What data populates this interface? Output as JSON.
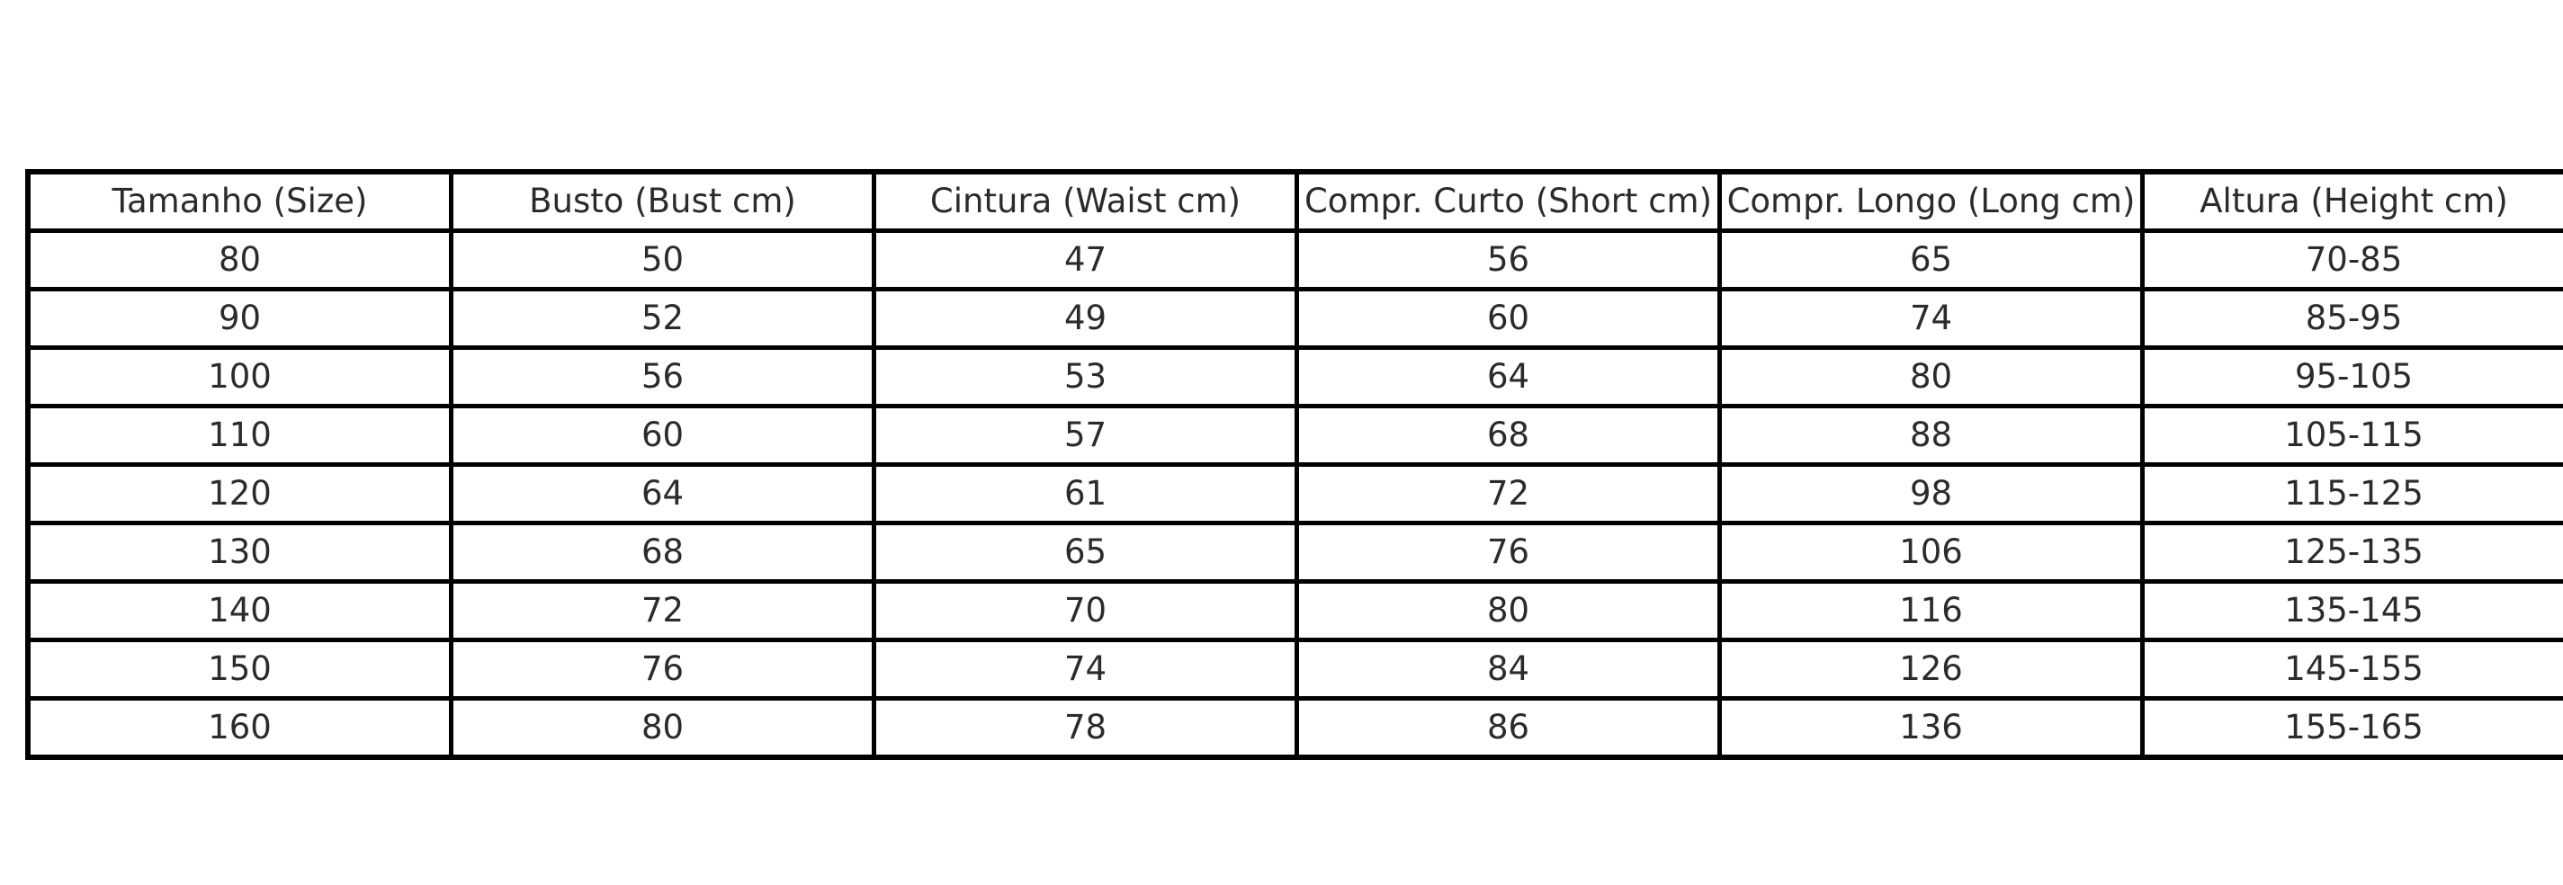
{
  "chart_data": {
    "type": "table",
    "title": "",
    "columns": [
      "Tamanho (Size)",
      "Busto (Bust cm)",
      "Cintura (Waist cm)",
      "Compr. Curto (Short cm)",
      "Compr. Longo (Long cm)",
      "Altura (Height cm)"
    ],
    "rows": [
      [
        80,
        50,
        47,
        56,
        65,
        "70-85"
      ],
      [
        90,
        52,
        49,
        60,
        74,
        "85-95"
      ],
      [
        100,
        56,
        53,
        64,
        80,
        "95-105"
      ],
      [
        110,
        60,
        57,
        68,
        88,
        "105-115"
      ],
      [
        120,
        64,
        61,
        72,
        98,
        "115-125"
      ],
      [
        130,
        68,
        65,
        76,
        106,
        "125-135"
      ],
      [
        140,
        72,
        70,
        80,
        116,
        "135-145"
      ],
      [
        150,
        76,
        74,
        84,
        126,
        "145-155"
      ],
      [
        160,
        80,
        78,
        86,
        136,
        "155-165"
      ]
    ],
    "layout": {
      "grid": true,
      "legend": "none",
      "header_row": true,
      "columns_equal_width": true
    }
  },
  "colors": {
    "border": "#000000",
    "text": "#2b2b2b",
    "background": "#ffffff"
  }
}
